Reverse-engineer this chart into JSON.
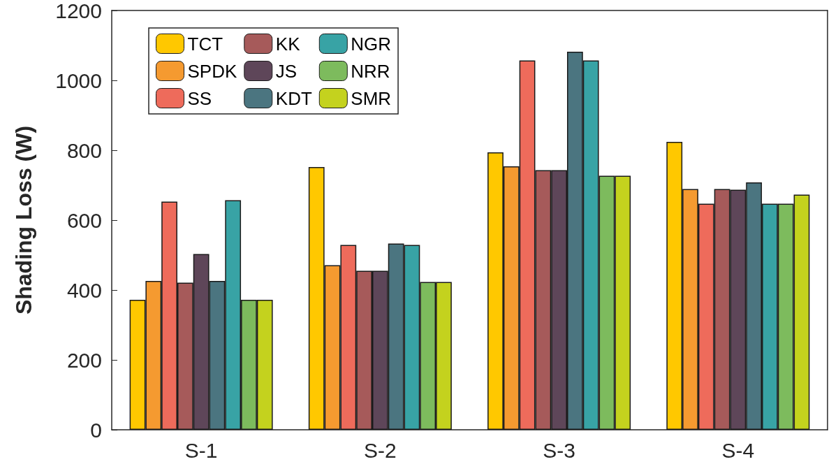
{
  "chart_data": {
    "type": "bar",
    "ylabel": "Shading Loss (W)",
    "categories": [
      "S-1",
      "S-2",
      "S-3",
      "S-4"
    ],
    "series": [
      {
        "name": "TCT",
        "color": "#ffc800",
        "values": [
          372,
          752,
          794,
          824
        ]
      },
      {
        "name": "SPDK",
        "color": "#f59a30",
        "values": [
          426,
          471,
          754,
          689
        ]
      },
      {
        "name": "SS",
        "color": "#ee6b5b",
        "values": [
          653,
          529,
          1057,
          647
        ]
      },
      {
        "name": "KK",
        "color": "#a65a5a",
        "values": [
          421,
          455,
          743,
          689
        ]
      },
      {
        "name": "JS",
        "color": "#5e4659",
        "values": [
          503,
          455,
          743,
          687
        ]
      },
      {
        "name": "KDT",
        "color": "#4b7580",
        "values": [
          426,
          533,
          1082,
          708
        ]
      },
      {
        "name": "NGR",
        "color": "#38a3a5",
        "values": [
          657,
          529,
          1057,
          647
        ]
      },
      {
        "name": "NRR",
        "color": "#7dbb5d",
        "values": [
          372,
          423,
          727,
          647
        ]
      },
      {
        "name": "SMR",
        "color": "#c4d21e",
        "values": [
          372,
          423,
          727,
          673
        ]
      }
    ],
    "ylim": [
      0,
      1200
    ],
    "yticks": [
      0,
      200,
      400,
      600,
      800,
      1000,
      1200
    ],
    "grid": false,
    "legend": "top left"
  }
}
